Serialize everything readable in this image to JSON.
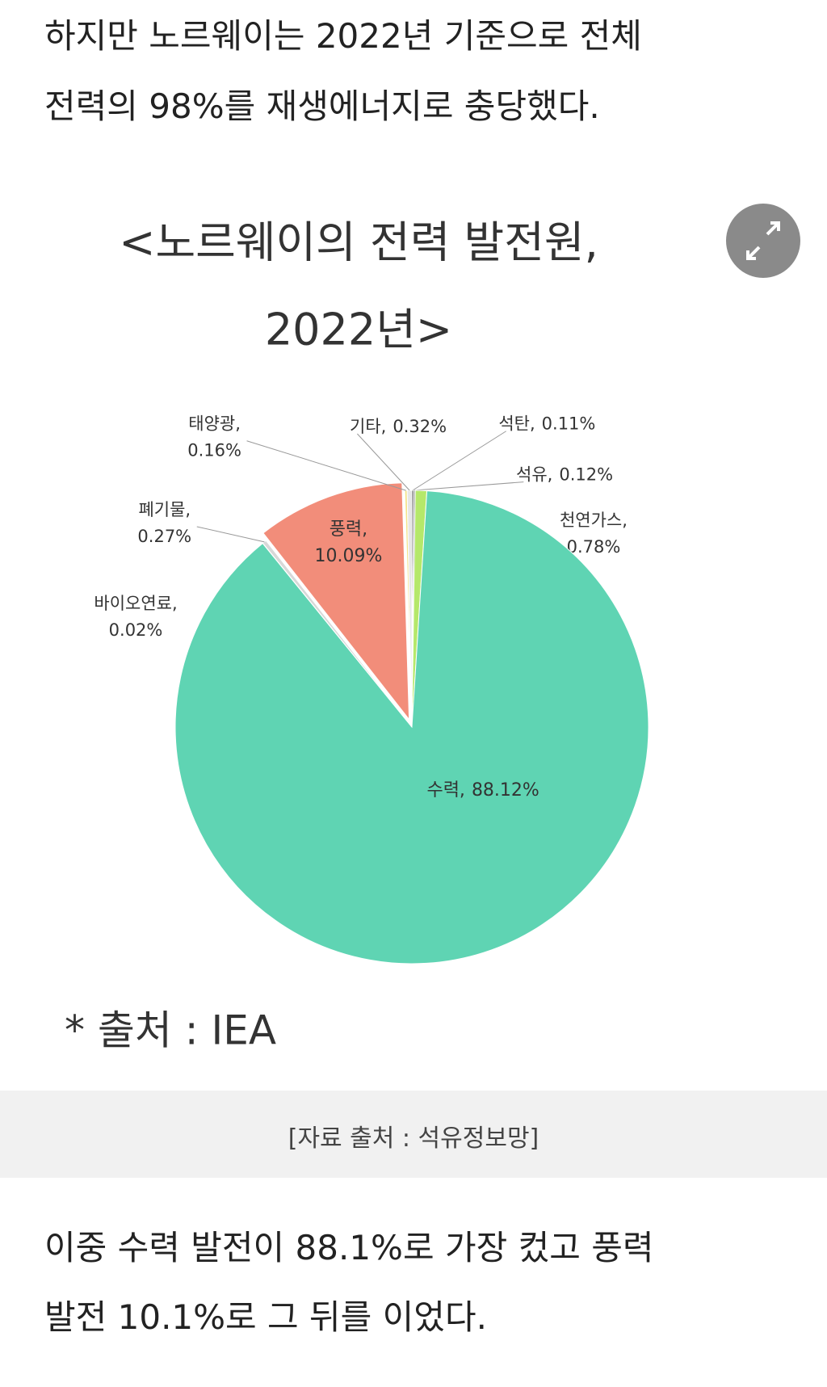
{
  "article": {
    "intro_lines": [
      "하지만 노르웨이는 2022년 기준으로 전체",
      "전력의 98%를 재생에너지로 충당했다."
    ],
    "caption": "[자료 출처 : 석유정보망]",
    "outro_lines": [
      "이중 수력 발전이 88.1%로 가장 컸고 풍력",
      "발전 10.1%로 그 뒤를 이었다."
    ]
  },
  "chart_data": {
    "type": "pie",
    "title": [
      "<노르웨이의 전력 발전원,",
      "2022년>"
    ],
    "source": "* 출처 : IEA",
    "categories": [
      "석탄,",
      "석유,",
      "천연가스,",
      "수력,",
      "바이오연료,",
      "폐기물,",
      "풍력,",
      "태양광,",
      "기타,"
    ],
    "values": [
      0.11,
      0.12,
      0.78,
      88.12,
      0.02,
      0.27,
      10.09,
      0.16,
      0.32
    ],
    "value_labels": [
      "0.11%",
      "0.12%",
      "0.78%",
      "88.12%",
      "0.02%",
      "0.27%",
      "10.09%",
      "0.16%",
      "0.32%"
    ],
    "colors": [
      "#4a4a4a",
      "#9a9a9a",
      "#b5e86a",
      "#5fd4b3",
      "#c9c9c9",
      "#d8d8d8",
      "#f28d7a",
      "#f3e38a",
      "#e6e6e6"
    ]
  }
}
